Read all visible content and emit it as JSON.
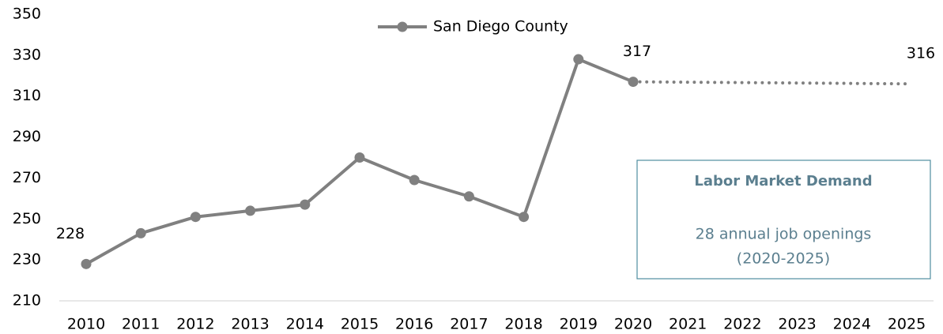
{
  "chart_data": {
    "type": "line",
    "categories": [
      "2010",
      "2011",
      "2012",
      "2013",
      "2014",
      "2015",
      "2016",
      "2017",
      "2018",
      "2019",
      "2020",
      "2021",
      "2022",
      "2023",
      "2024",
      "2025"
    ],
    "series": [
      {
        "name": "San Diego County",
        "color": "#808080",
        "markers": true,
        "dash": "solid",
        "values": [
          228,
          243,
          251,
          254,
          257,
          280,
          269,
          261,
          251,
          328,
          317,
          null,
          null,
          null,
          null,
          null
        ],
        "label_indices": [
          0,
          10
        ]
      },
      {
        "color": "#808080",
        "markers": false,
        "dash": "dotted",
        "values": [
          null,
          null,
          null,
          null,
          null,
          null,
          null,
          null,
          null,
          null,
          317,
          316.8,
          316.6,
          316.4,
          316.2,
          316
        ],
        "label_indices": [
          15
        ]
      }
    ],
    "ylim": [
      210,
      350
    ],
    "yticks": [
      210,
      230,
      250,
      270,
      290,
      310,
      330,
      350
    ],
    "grid": false,
    "legend": "top",
    "annotation": {
      "title": "Labor Market Demand",
      "lines": [
        "28 annual job openings",
        "(2020-2025)"
      ]
    }
  }
}
